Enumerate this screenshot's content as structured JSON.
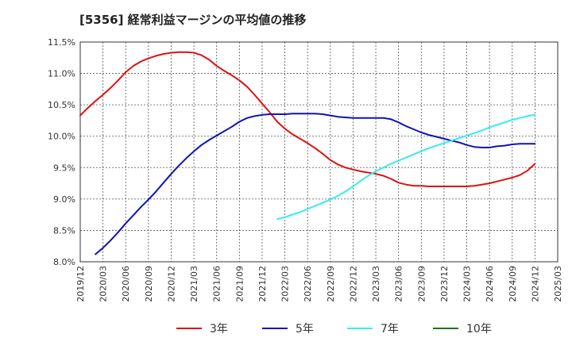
{
  "chart_data": {
    "type": "line",
    "title": "[5356]  経常利益マージンの平均値の推移",
    "xlabel": "",
    "ylabel": "",
    "ylim": [
      8.0,
      11.5
    ],
    "xlim": [
      "2019/12",
      "2025/03"
    ],
    "grid": true,
    "legend_position": "bottom",
    "y_ticks": [
      "8.0%",
      "8.5%",
      "9.0%",
      "9.5%",
      "10.0%",
      "10.5%",
      "11.0%",
      "11.5%"
    ],
    "y_tick_values": [
      8.0,
      8.5,
      9.0,
      9.5,
      10.0,
      10.5,
      11.0,
      11.5
    ],
    "x_ticks": [
      "2019/12",
      "2020/03",
      "2020/06",
      "2020/09",
      "2020/12",
      "2021/03",
      "2021/06",
      "2021/09",
      "2021/12",
      "2022/03",
      "2022/06",
      "2022/09",
      "2022/12",
      "2023/03",
      "2023/06",
      "2023/09",
      "2023/12",
      "2024/03",
      "2024/06",
      "2024/09",
      "2024/12",
      "2025/03"
    ],
    "series": [
      {
        "name": "3年",
        "color": "#dd1111",
        "x": [
          "2019/12",
          "2020/01",
          "2020/02",
          "2020/03",
          "2020/04",
          "2020/05",
          "2020/06",
          "2020/07",
          "2020/08",
          "2020/09",
          "2020/10",
          "2020/11",
          "2020/12",
          "2021/01",
          "2021/02",
          "2021/03",
          "2021/04",
          "2021/05",
          "2021/06",
          "2021/07",
          "2021/08",
          "2021/09",
          "2021/10",
          "2021/11",
          "2021/12",
          "2022/01",
          "2022/02",
          "2022/03",
          "2022/04",
          "2022/05",
          "2022/06",
          "2022/07",
          "2022/08",
          "2022/09",
          "2022/10",
          "2022/11",
          "2022/12",
          "2023/01",
          "2023/02",
          "2023/03",
          "2023/04",
          "2023/05",
          "2023/06",
          "2023/07",
          "2023/08",
          "2023/09",
          "2023/10",
          "2023/11",
          "2023/12",
          "2024/01",
          "2024/02",
          "2024/03",
          "2024/04",
          "2024/05",
          "2024/06",
          "2024/07",
          "2024/08",
          "2024/09",
          "2024/10",
          "2024/11",
          "2024/12"
        ],
        "values": [
          10.33,
          10.45,
          10.56,
          10.66,
          10.77,
          10.89,
          11.02,
          11.12,
          11.19,
          11.24,
          11.28,
          11.31,
          11.33,
          11.34,
          11.34,
          11.33,
          11.29,
          11.22,
          11.12,
          11.04,
          10.97,
          10.89,
          10.79,
          10.66,
          10.52,
          10.38,
          10.23,
          10.12,
          10.03,
          9.96,
          9.89,
          9.81,
          9.72,
          9.62,
          9.55,
          9.5,
          9.47,
          9.44,
          9.42,
          9.4,
          9.37,
          9.32,
          9.26,
          9.23,
          9.21,
          9.21,
          9.2,
          9.2,
          9.2,
          9.2,
          9.2,
          9.2,
          9.21,
          9.23,
          9.25,
          9.28,
          9.31,
          9.34,
          9.38,
          9.45,
          9.56
        ]
      },
      {
        "name": "5年",
        "color": "#1111bb",
        "x": [
          "2020/02",
          "2020/03",
          "2020/04",
          "2020/05",
          "2020/06",
          "2020/07",
          "2020/08",
          "2020/09",
          "2020/10",
          "2020/11",
          "2020/12",
          "2021/01",
          "2021/02",
          "2021/03",
          "2021/04",
          "2021/05",
          "2021/06",
          "2021/07",
          "2021/08",
          "2021/09",
          "2021/10",
          "2021/11",
          "2021/12",
          "2022/01",
          "2022/02",
          "2022/03",
          "2022/04",
          "2022/05",
          "2022/06",
          "2022/07",
          "2022/08",
          "2022/09",
          "2022/10",
          "2022/11",
          "2022/12",
          "2023/01",
          "2023/02",
          "2023/03",
          "2023/04",
          "2023/05",
          "2023/06",
          "2023/07",
          "2023/08",
          "2023/09",
          "2023/10",
          "2023/11",
          "2023/12",
          "2024/01",
          "2024/02",
          "2024/03",
          "2024/04",
          "2024/05",
          "2024/06",
          "2024/07",
          "2024/08",
          "2024/09",
          "2024/10",
          "2024/11",
          "2024/12"
        ],
        "values": [
          8.12,
          8.22,
          8.34,
          8.47,
          8.61,
          8.74,
          8.87,
          8.99,
          9.12,
          9.26,
          9.4,
          9.53,
          9.65,
          9.76,
          9.86,
          9.94,
          10.01,
          10.08,
          10.15,
          10.23,
          10.29,
          10.32,
          10.34,
          10.35,
          10.35,
          10.35,
          10.36,
          10.36,
          10.36,
          10.36,
          10.35,
          10.33,
          10.31,
          10.3,
          10.29,
          10.29,
          10.29,
          10.29,
          10.29,
          10.27,
          10.22,
          10.16,
          10.11,
          10.06,
          10.02,
          9.99,
          9.96,
          9.93,
          9.9,
          9.86,
          9.83,
          9.82,
          9.82,
          9.84,
          9.85,
          9.87,
          9.88,
          9.88,
          9.88
        ]
      },
      {
        "name": "7年",
        "color": "#33eeee",
        "x": [
          "2022/02",
          "2022/03",
          "2022/04",
          "2022/05",
          "2022/06",
          "2022/07",
          "2022/08",
          "2022/09",
          "2022/10",
          "2022/11",
          "2022/12",
          "2023/01",
          "2023/02",
          "2023/03",
          "2023/04",
          "2023/05",
          "2023/06",
          "2023/07",
          "2023/08",
          "2023/09",
          "2023/10",
          "2023/11",
          "2023/12",
          "2024/01",
          "2024/02",
          "2024/03",
          "2024/04",
          "2024/05",
          "2024/06",
          "2024/07",
          "2024/08",
          "2024/09",
          "2024/10",
          "2024/11",
          "2024/12"
        ],
        "values": [
          8.68,
          8.71,
          8.75,
          8.79,
          8.84,
          8.89,
          8.94,
          8.99,
          9.05,
          9.12,
          9.2,
          9.29,
          9.37,
          9.44,
          9.5,
          9.56,
          9.61,
          9.66,
          9.71,
          9.76,
          9.81,
          9.85,
          9.89,
          9.93,
          9.97,
          10.01,
          10.05,
          10.09,
          10.14,
          10.18,
          10.22,
          10.26,
          10.29,
          10.32,
          10.34
        ]
      },
      {
        "name": "10年",
        "color": "#117711",
        "x": [],
        "values": []
      }
    ]
  }
}
